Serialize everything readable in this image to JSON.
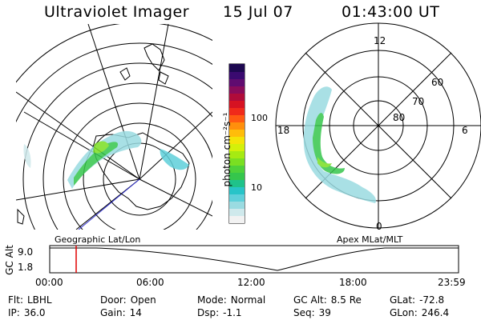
{
  "header": {
    "title": "Ultraviolet Imager",
    "date": "15 Jul 07",
    "time": "01:43:00 UT"
  },
  "colorbar": {
    "unit_label": "photon cm⁻²s⁻¹",
    "scale": "log",
    "tick_labels": [
      "100",
      "10"
    ],
    "colors": [
      "#f2f2f2",
      "#cfe9ec",
      "#9adbe1",
      "#5fd0da",
      "#28c4c8",
      "#1fc28a",
      "#35c64c",
      "#4ed13a",
      "#7adf22",
      "#a6ea12",
      "#d4f00a",
      "#f4e408",
      "#ffbd0a",
      "#ff8f0c",
      "#ff5a12",
      "#f02a1a",
      "#d61222",
      "#b00c3a",
      "#8a0c5a",
      "#600c70",
      "#3a0a70",
      "#1d0850"
    ]
  },
  "left_map": {
    "label": "Geographic Lat/Lon"
  },
  "right_map": {
    "label": "Apex MLat/MLT",
    "mlt_labels": [
      "12",
      "18",
      "6",
      "0"
    ],
    "mlat_labels": [
      "60",
      "70",
      "80"
    ]
  },
  "altitude_plot": {
    "ylabel": "GC Alt",
    "yticks": [
      "9.0",
      "1.8"
    ],
    "xticks": [
      "00:00",
      "06:00",
      "12:00",
      "18:00",
      "23:59"
    ],
    "current_time_marker": "01:43"
  },
  "info": {
    "row1": [
      {
        "key": "Flt:",
        "value": "LBHL"
      },
      {
        "key": "Door:",
        "value": "Open"
      },
      {
        "key": "Mode:",
        "value": "Normal"
      },
      {
        "key": "GC Alt:",
        "value": "8.5 Re"
      },
      {
        "key": "GLat:",
        "value": "-72.8"
      }
    ],
    "row2": [
      {
        "key": "IP:",
        "value": "36.0"
      },
      {
        "key": "Gain:",
        "value": "14"
      },
      {
        "key": "Dsp:",
        "value": "-1.1"
      },
      {
        "key": "Seq:",
        "value": "39"
      },
      {
        "key": "GLon:",
        "value": "246.4"
      }
    ]
  }
}
